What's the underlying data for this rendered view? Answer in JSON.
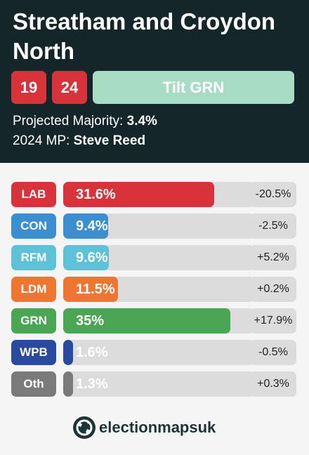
{
  "header": {
    "title": "Streatham and Croydon North",
    "years": [
      {
        "label": "19",
        "color": "#d8323b"
      },
      {
        "label": "24",
        "color": "#d8323b"
      }
    ],
    "tilt_label": "Tilt GRN",
    "tilt_color": "#a9dcc4",
    "projected_majority_label": "Projected Majority:",
    "projected_majority_value": "3.4%",
    "mp_label": "2024 MP:",
    "mp_value": "Steve Reed"
  },
  "results": [
    {
      "party": "LAB",
      "share_label": "31.6%",
      "share": 31.6,
      "change": "-20.5%",
      "color": "#d8323b"
    },
    {
      "party": "CON",
      "share_label": "9.4%",
      "share": 9.4,
      "change": "-2.5%",
      "color": "#3b8fd0"
    },
    {
      "party": "RFM",
      "share_label": "9.6%",
      "share": 9.6,
      "change": "+5.2%",
      "color": "#5dc1d8"
    },
    {
      "party": "LDM",
      "share_label": "11.5%",
      "share": 11.5,
      "change": "+0.2%",
      "color": "#ee7631"
    },
    {
      "party": "GRN",
      "share_label": "35%",
      "share": 35.0,
      "change": "+17.9%",
      "color": "#4aa653"
    },
    {
      "party": "WPB",
      "share_label": "1.6%",
      "share": 1.6,
      "change": "-0.5%",
      "color": "#2a4aa0"
    },
    {
      "party": "Oth",
      "share_label": "1.3%",
      "share": 1.3,
      "change": "+0.3%",
      "color": "#7a7a7a"
    }
  ],
  "bar_scale_max": 40,
  "footer": {
    "logo_text": "electionmapsuk",
    "logo_icon": "globe-icon"
  }
}
